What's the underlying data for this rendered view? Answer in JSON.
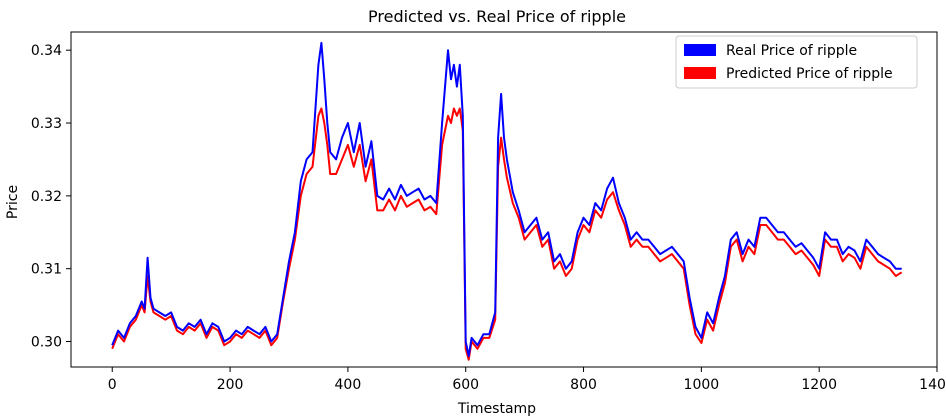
{
  "chart_data": {
    "type": "line",
    "title": "Predicted vs. Real Price of ripple",
    "xlabel": "Timestamp",
    "ylabel": "Price",
    "xlim": [
      -70,
      1400
    ],
    "ylim": [
      0.2965,
      0.3425
    ],
    "xticks": [
      0,
      200,
      400,
      600,
      800,
      1000,
      1200,
      1400
    ],
    "xtick_labels": [
      "0",
      "200",
      "400",
      "600",
      "800",
      "1000",
      "1200",
      "1400"
    ],
    "yticks": [
      0.3,
      0.31,
      0.32,
      0.33,
      0.34
    ],
    "ytick_labels": [
      "0.30",
      "0.31",
      "0.32",
      "0.33",
      "0.34"
    ],
    "grid": false,
    "legend_position": "top-right",
    "x": [
      0,
      10,
      20,
      30,
      40,
      50,
      55,
      60,
      65,
      70,
      80,
      90,
      100,
      110,
      120,
      130,
      140,
      150,
      160,
      170,
      180,
      190,
      200,
      210,
      220,
      230,
      240,
      250,
      260,
      270,
      280,
      290,
      300,
      310,
      320,
      330,
      340,
      350,
      355,
      360,
      365,
      370,
      380,
      390,
      400,
      410,
      420,
      430,
      440,
      450,
      460,
      470,
      480,
      490,
      500,
      510,
      520,
      530,
      540,
      550,
      560,
      570,
      575,
      580,
      585,
      590,
      595,
      600,
      605,
      610,
      620,
      630,
      640,
      650,
      655,
      660,
      665,
      670,
      680,
      690,
      700,
      710,
      720,
      730,
      740,
      750,
      760,
      770,
      780,
      790,
      800,
      810,
      820,
      830,
      840,
      850,
      860,
      870,
      880,
      890,
      900,
      910,
      920,
      930,
      940,
      950,
      960,
      970,
      980,
      990,
      1000,
      1010,
      1020,
      1030,
      1040,
      1050,
      1060,
      1070,
      1080,
      1090,
      1100,
      1110,
      1120,
      1130,
      1140,
      1150,
      1160,
      1170,
      1180,
      1190,
      1200,
      1210,
      1220,
      1230,
      1240,
      1250,
      1260,
      1270,
      1280,
      1290,
      1300,
      1310,
      1320,
      1330,
      1340
    ],
    "series": [
      {
        "name": "Real Price of ripple",
        "color": "#0000ff",
        "values": [
          0.2995,
          0.3015,
          0.3005,
          0.3025,
          0.3035,
          0.3055,
          0.3045,
          0.3115,
          0.306,
          0.3045,
          0.304,
          0.3035,
          0.304,
          0.302,
          0.3015,
          0.3025,
          0.302,
          0.303,
          0.301,
          0.3025,
          0.302,
          0.3,
          0.3005,
          0.3015,
          0.301,
          0.302,
          0.3015,
          0.301,
          0.302,
          0.3,
          0.301,
          0.306,
          0.311,
          0.315,
          0.322,
          0.325,
          0.326,
          0.338,
          0.341,
          0.336,
          0.33,
          0.326,
          0.325,
          0.328,
          0.33,
          0.326,
          0.33,
          0.324,
          0.3275,
          0.32,
          0.3195,
          0.321,
          0.3195,
          0.3215,
          0.32,
          0.3205,
          0.321,
          0.3195,
          0.32,
          0.319,
          0.33,
          0.34,
          0.336,
          0.338,
          0.335,
          0.338,
          0.331,
          0.3,
          0.298,
          0.3005,
          0.2995,
          0.301,
          0.301,
          0.304,
          0.328,
          0.334,
          0.328,
          0.325,
          0.3205,
          0.318,
          0.315,
          0.316,
          0.317,
          0.314,
          0.315,
          0.311,
          0.312,
          0.31,
          0.311,
          0.315,
          0.317,
          0.316,
          0.319,
          0.318,
          0.321,
          0.3225,
          0.319,
          0.317,
          0.314,
          0.315,
          0.314,
          0.314,
          0.313,
          0.312,
          0.3125,
          0.313,
          0.312,
          0.311,
          0.306,
          0.302,
          0.3005,
          0.304,
          0.3025,
          0.306,
          0.309,
          0.314,
          0.315,
          0.312,
          0.314,
          0.313,
          0.317,
          0.317,
          0.316,
          0.315,
          0.315,
          0.314,
          0.313,
          0.3135,
          0.3125,
          0.3115,
          0.31,
          0.315,
          0.314,
          0.314,
          0.312,
          0.313,
          0.3125,
          0.311,
          0.314,
          0.313,
          0.312,
          0.3115,
          0.311,
          0.31,
          0.31
        ]
      },
      {
        "name": "Predicted Price of ripple",
        "color": "#ff0000",
        "values": [
          0.299,
          0.301,
          0.3,
          0.302,
          0.303,
          0.305,
          0.304,
          0.309,
          0.3055,
          0.304,
          0.3035,
          0.303,
          0.3035,
          0.3015,
          0.301,
          0.302,
          0.3015,
          0.3025,
          0.3005,
          0.302,
          0.3015,
          0.2995,
          0.3,
          0.301,
          0.3005,
          0.3015,
          0.301,
          0.3005,
          0.3015,
          0.2995,
          0.3005,
          0.3055,
          0.31,
          0.314,
          0.32,
          0.323,
          0.324,
          0.331,
          0.332,
          0.33,
          0.327,
          0.323,
          0.323,
          0.325,
          0.327,
          0.324,
          0.327,
          0.322,
          0.325,
          0.318,
          0.318,
          0.3195,
          0.318,
          0.32,
          0.3185,
          0.319,
          0.3195,
          0.318,
          0.3185,
          0.3175,
          0.327,
          0.331,
          0.33,
          0.332,
          0.331,
          0.332,
          0.329,
          0.299,
          0.2975,
          0.3,
          0.299,
          0.3005,
          0.3005,
          0.303,
          0.324,
          0.328,
          0.325,
          0.3225,
          0.319,
          0.317,
          0.314,
          0.315,
          0.316,
          0.313,
          0.314,
          0.31,
          0.311,
          0.309,
          0.31,
          0.314,
          0.316,
          0.315,
          0.318,
          0.317,
          0.3195,
          0.3205,
          0.318,
          0.316,
          0.313,
          0.314,
          0.313,
          0.313,
          0.312,
          0.311,
          0.3115,
          0.312,
          0.311,
          0.31,
          0.305,
          0.301,
          0.2998,
          0.303,
          0.3015,
          0.305,
          0.308,
          0.313,
          0.314,
          0.311,
          0.313,
          0.312,
          0.316,
          0.316,
          0.315,
          0.314,
          0.314,
          0.313,
          0.312,
          0.3125,
          0.3115,
          0.3105,
          0.309,
          0.314,
          0.313,
          0.313,
          0.311,
          0.312,
          0.3115,
          0.31,
          0.313,
          0.312,
          0.311,
          0.3105,
          0.31,
          0.309,
          0.3095
        ]
      }
    ]
  }
}
